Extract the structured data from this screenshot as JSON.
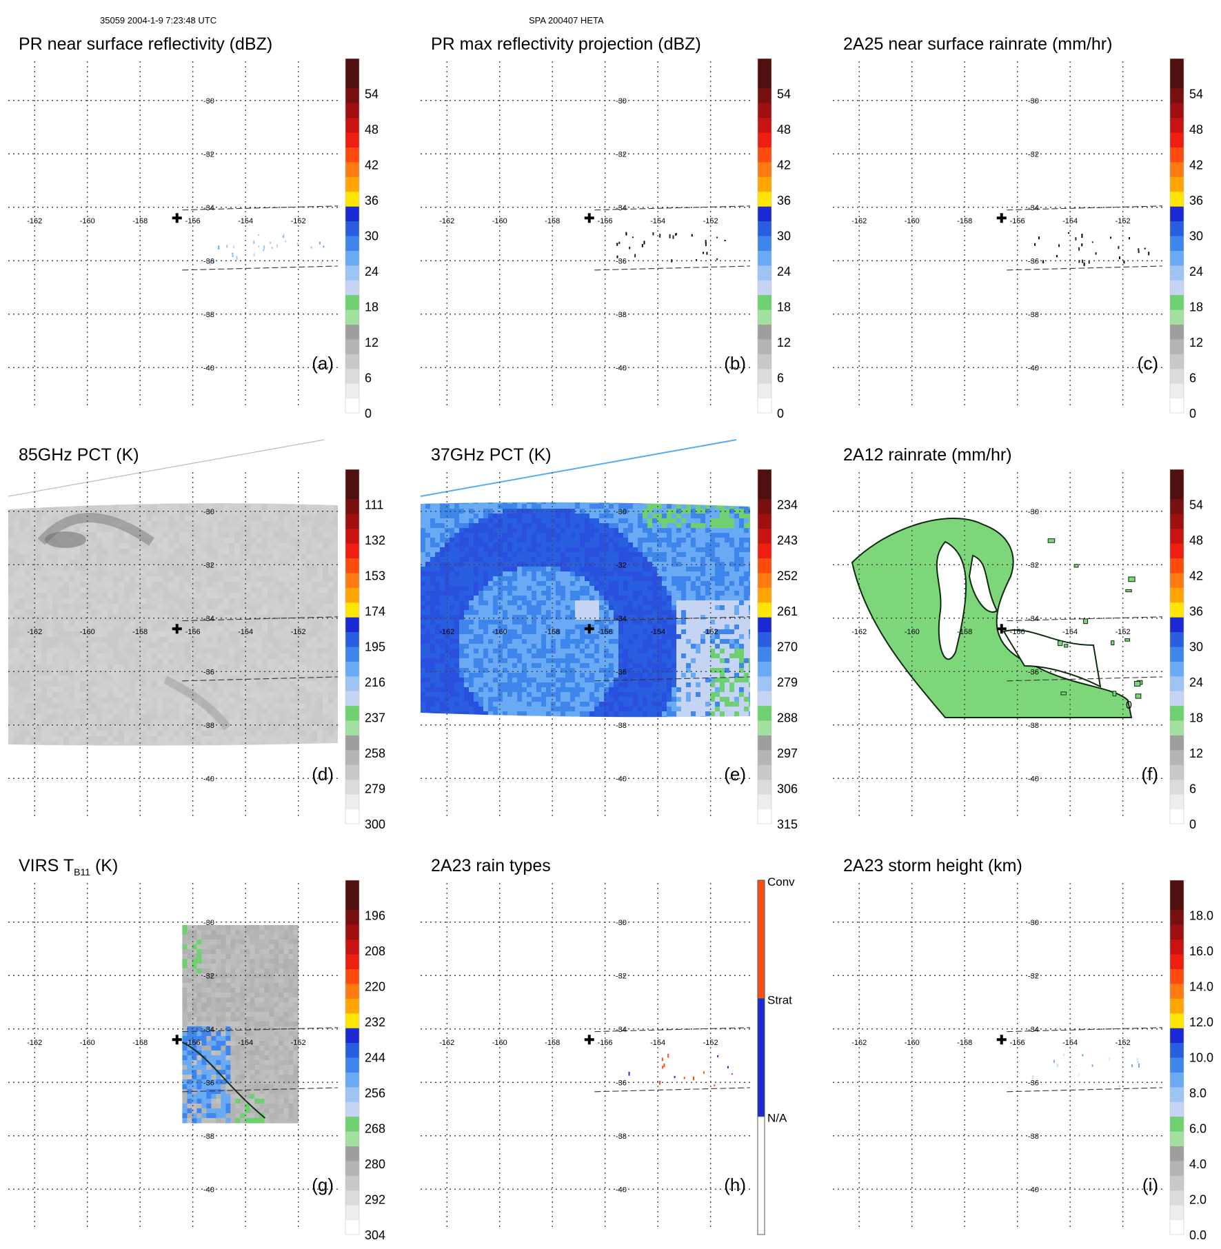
{
  "header": {
    "left": "35059 2004-1-9 7:23:48 UTC",
    "center": "SPA 200407 HETA"
  },
  "map": {
    "lon_ticks": [
      "-162",
      "-160",
      "-158",
      "-156",
      "-154",
      "-152"
    ],
    "lat_ticks": [
      "-30",
      "-32",
      "-34",
      "-36",
      "-38",
      "-40"
    ],
    "lon_range": [
      -163,
      -150.5
    ],
    "lat_range": [
      -29,
      -41
    ],
    "storm_center": {
      "lon": -156.6,
      "lat": -34.4
    }
  },
  "colors": {
    "greys": [
      "#ffffff",
      "#ededed",
      "#dcdcdc",
      "#c8c8c8",
      "#b4b4b4",
      "#9e9e9e",
      "#8a8a8a"
    ],
    "greens": [
      "#a2e0a0",
      "#6ed06e"
    ],
    "blues": [
      "#c6d4f4",
      "#9ec4f4",
      "#6aaaf4",
      "#3f86ec",
      "#2a5ee0",
      "#1c2ad6"
    ],
    "hot": [
      "#ffe600",
      "#ffa600",
      "#ff7a10",
      "#ff4a10",
      "#ee1e10",
      "#c81410",
      "#a01010",
      "#781010",
      "#501010"
    ],
    "panel_e_bg": "#5b9cf0",
    "panel_e_dark": "#2a50e0",
    "panel_f_rain": "#7ed67a",
    "panel_d_bg": "#dcdcdc",
    "panel_g_bg": "#bcbcbc",
    "conv": "#ff4a10",
    "strat": "#1c2ad6"
  },
  "chart_data": [
    {
      "id": "a",
      "type": "heatmap",
      "title": "PR near surface reflectivity (dBZ)",
      "label": "(a)",
      "units": "dBZ",
      "colorbar": {
        "ticks": [
          "0",
          "6",
          "12",
          "18",
          "24",
          "30",
          "36",
          "42",
          "48",
          "54"
        ]
      }
    },
    {
      "id": "b",
      "type": "heatmap",
      "title": "PR max reflectivity projection (dBZ)",
      "label": "(b)",
      "units": "dBZ",
      "colorbar": {
        "ticks": [
          "0",
          "6",
          "12",
          "18",
          "24",
          "30",
          "36",
          "42",
          "48",
          "54"
        ]
      }
    },
    {
      "id": "c",
      "type": "heatmap",
      "title": "2A25 near surface rainrate (mm/hr)",
      "label": "(c)",
      "units": "mm/hr",
      "colorbar": {
        "ticks": [
          "0",
          "6",
          "12",
          "18",
          "24",
          "30",
          "36",
          "42",
          "48",
          "54"
        ]
      }
    },
    {
      "id": "d",
      "type": "heatmap",
      "title": "85GHz PCT (K)",
      "label": "(d)",
      "units": "K",
      "colorbar": {
        "ticks": [
          "300",
          "279",
          "258",
          "237",
          "216",
          "195",
          "174",
          "153",
          "132",
          "111"
        ]
      }
    },
    {
      "id": "e",
      "type": "heatmap",
      "title": "37GHz PCT (K)",
      "label": "(e)",
      "units": "K",
      "colorbar": {
        "ticks": [
          "315",
          "306",
          "297",
          "288",
          "279",
          "270",
          "261",
          "252",
          "243",
          "234"
        ]
      }
    },
    {
      "id": "f",
      "type": "heatmap",
      "title": "2A12 rainrate (mm/hr)",
      "label": "(f)",
      "units": "mm/hr",
      "contour_label": "0",
      "colorbar": {
        "ticks": [
          "0",
          "6",
          "12",
          "18",
          "24",
          "30",
          "36",
          "42",
          "48",
          "54"
        ]
      }
    },
    {
      "id": "g",
      "type": "heatmap",
      "title": "VIRS T",
      "title_sub": "B11",
      "title_suffix": " (K)",
      "label": "(g)",
      "units": "K",
      "colorbar": {
        "ticks": [
          "304",
          "292",
          "280",
          "268",
          "256",
          "244",
          "232",
          "220",
          "208",
          "196"
        ]
      }
    },
    {
      "id": "h",
      "type": "heatmap",
      "title": "2A23 rain types",
      "label": "(h)",
      "colorbar": {
        "categories": [
          "N/A",
          "Strat",
          "Conv"
        ]
      }
    },
    {
      "id": "i",
      "type": "heatmap",
      "title": "2A23 storm height (km)",
      "label": "(i)",
      "units": "km",
      "colorbar": {
        "ticks": [
          "0.0",
          "2.0",
          "4.0",
          "6.0",
          "8.0",
          "10.0",
          "12.0",
          "14.0",
          "16.0",
          "18.0"
        ]
      }
    }
  ]
}
